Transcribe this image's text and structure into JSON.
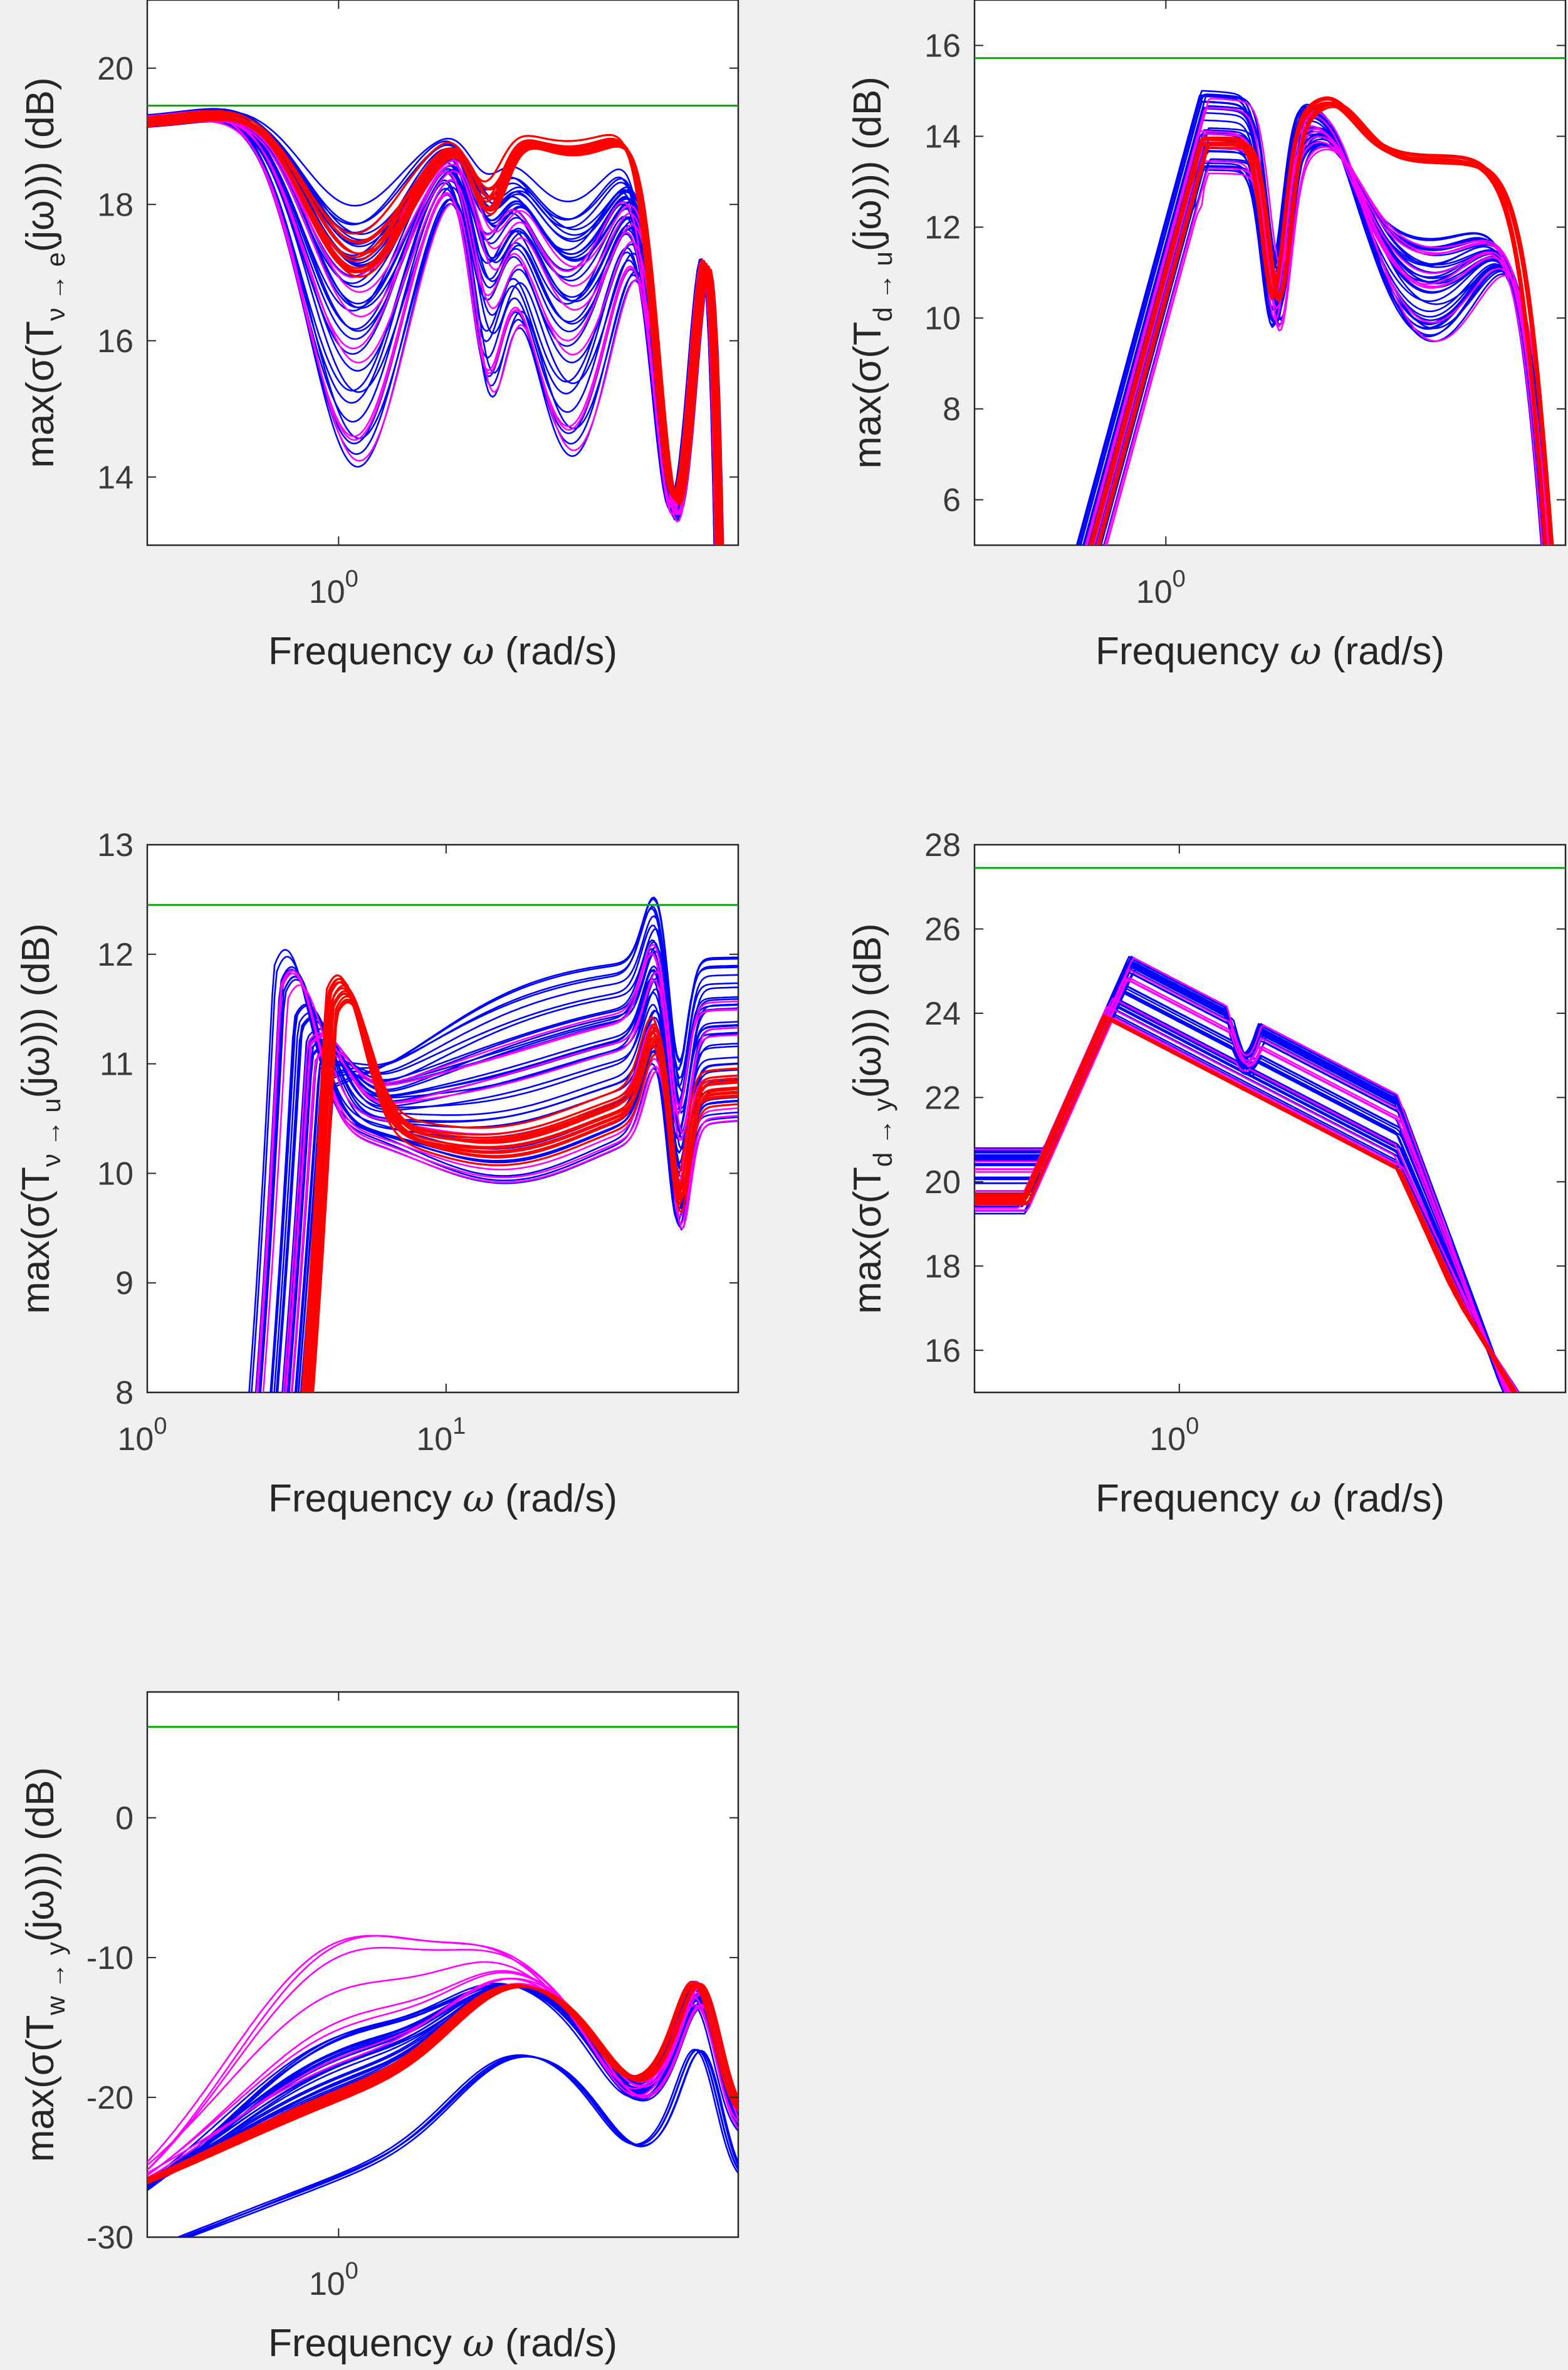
{
  "colors": {
    "background": "#f0f0f0",
    "axes": "#ffffff",
    "blue": "#0000ff",
    "red": "#ff0000",
    "magenta": "#ff00ff",
    "bound": "#00aa00",
    "text": "#262626"
  },
  "chart_data": [
    {
      "type": "line",
      "xlabel_text": "Frequency",
      "xlabel_symbol": "ω",
      "xlabel_units": "(rad/s)",
      "ylabel_pre": "max(σ(T",
      "ylabel_sub": "ν → e",
      "ylabel_post": "(jω))) (dB)",
      "xscale": "log",
      "xlim": [
        0.45,
        5.3
      ],
      "ylim": [
        13,
        21
      ],
      "xticks": [
        {
          "value": 1,
          "base": "10",
          "exp": "0"
        }
      ],
      "yticks": [
        14,
        16,
        18,
        20
      ],
      "bound": 19.45,
      "shape": "s1",
      "series": [
        {
          "color": "blue",
          "count": 34
        },
        {
          "color": "magenta",
          "count": 9
        },
        {
          "color": "red",
          "count": 14
        }
      ]
    },
    {
      "type": "line",
      "xlabel_text": "Frequency",
      "xlabel_symbol": "ω",
      "xlabel_units": "(rad/s)",
      "ylabel_pre": "max(σ(T",
      "ylabel_sub": "d → u",
      "ylabel_post": "(jω))) (dB)",
      "xscale": "log",
      "xlim": [
        0.45,
        5.3
      ],
      "ylim": [
        5,
        17
      ],
      "xticks": [
        {
          "value": 1,
          "base": "10",
          "exp": "0"
        }
      ],
      "yticks": [
        6,
        8,
        10,
        12,
        14,
        16
      ],
      "bound": 15.72,
      "shape": "s2",
      "series": [
        {
          "color": "blue",
          "count": 34
        },
        {
          "color": "magenta",
          "count": 9
        },
        {
          "color": "red",
          "count": 14
        }
      ]
    },
    {
      "type": "line",
      "xlabel_text": "Frequency",
      "xlabel_symbol": "ω",
      "xlabel_units": "(rad/s)",
      "ylabel_pre": "max(σ(T",
      "ylabel_sub": "ν → u",
      "ylabel_post": "(jω))) (dB)",
      "xscale": "log",
      "xlim": [
        1,
        95
      ],
      "ylim": [
        8,
        13
      ],
      "xticks": [
        {
          "value": 1,
          "base": "10",
          "exp": "0"
        },
        {
          "value": 10,
          "base": "10",
          "exp": "1"
        }
      ],
      "yticks": [
        8,
        9,
        10,
        11,
        12,
        13
      ],
      "bound": 12.45,
      "shape": "s3",
      "series": [
        {
          "color": "blue",
          "count": 34
        },
        {
          "color": "magenta",
          "count": 9
        },
        {
          "color": "red",
          "count": 14
        }
      ]
    },
    {
      "type": "line",
      "xlabel_text": "Frequency",
      "xlabel_symbol": "ω",
      "xlabel_units": "(rad/s)",
      "ylabel_pre": "max(σ(T",
      "ylabel_sub": "d → y",
      "ylabel_post": "(jω))) (dB)",
      "xscale": "log",
      "xlim": [
        0.38,
        6.2
      ],
      "ylim": [
        15,
        28
      ],
      "xticks": [
        {
          "value": 1,
          "base": "10",
          "exp": "0"
        }
      ],
      "yticks": [
        16,
        18,
        20,
        22,
        24,
        26,
        28
      ],
      "bound": 27.45,
      "shape": "s4",
      "series": [
        {
          "color": "blue",
          "count": 34
        },
        {
          "color": "magenta",
          "count": 9
        },
        {
          "color": "red",
          "count": 14
        }
      ]
    },
    {
      "type": "line",
      "xlabel_text": "Frequency",
      "xlabel_symbol": "ω",
      "xlabel_units": "(rad/s)",
      "ylabel_pre": "max(σ(T",
      "ylabel_sub": "w → y",
      "ylabel_post": "(jω))) (dB)",
      "xscale": "log",
      "xlim": [
        0.45,
        5.3
      ],
      "ylim": [
        -30,
        9
      ],
      "xticks": [
        {
          "value": 1,
          "base": "10",
          "exp": "0"
        }
      ],
      "yticks": [
        -30,
        -20,
        -10,
        0
      ],
      "bound": 6.5,
      "shape": "s5",
      "series": [
        {
          "color": "blue",
          "count": 34
        },
        {
          "color": "magenta",
          "count": 9
        },
        {
          "color": "red",
          "count": 14
        }
      ]
    }
  ]
}
